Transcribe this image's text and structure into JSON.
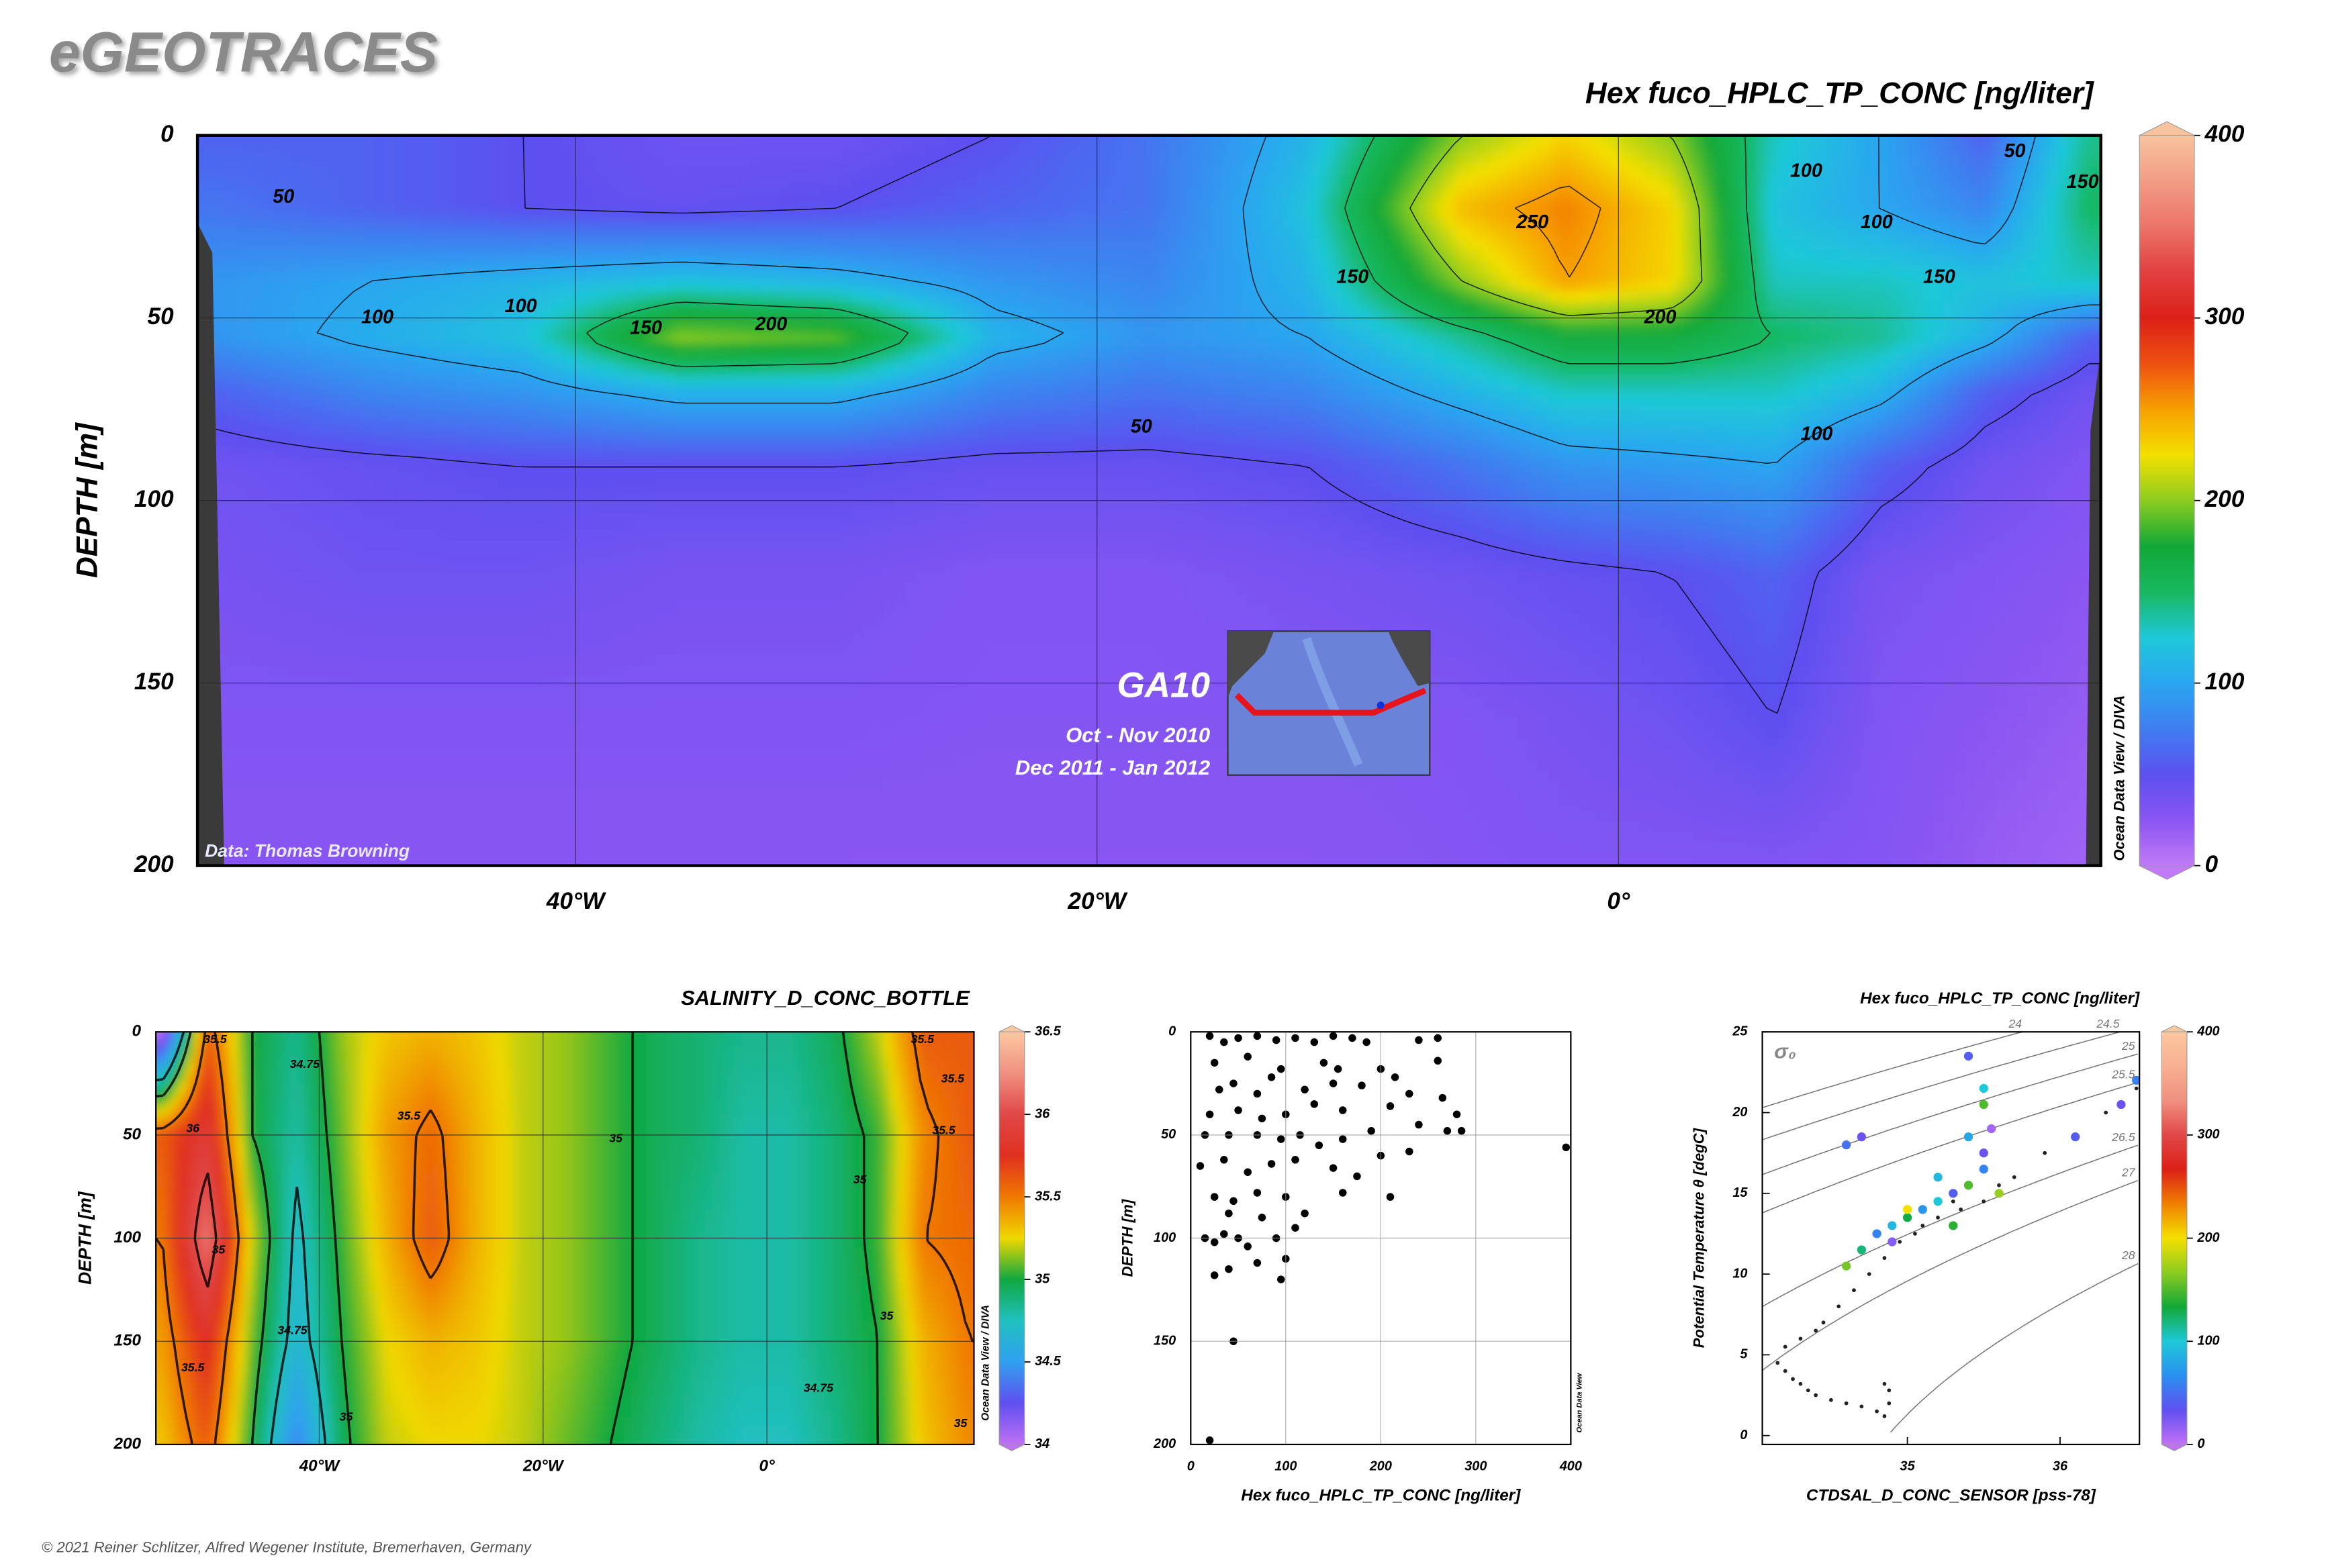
{
  "logo": "eGEOTRACES",
  "footer": "© 2021 Reiner Schlitzer, Alfred Wegener Institute, Bremerhaven, Germany",
  "chart_data": [
    {
      "type": "section",
      "title": "Hex fuco_HPLC_TP_CONC [ng/liter]",
      "ylabel": "DEPTH [m]",
      "xlim": [
        -54.5,
        18.5
      ],
      "ylim": [
        0,
        200
      ],
      "y_inverted": true,
      "grid": true,
      "xticks": [
        {
          "value": -40,
          "label": "40°W"
        },
        {
          "value": -20,
          "label": "20°W"
        },
        {
          "value": 0,
          "label": "0°"
        }
      ],
      "yticks": [
        0,
        50,
        100,
        150,
        200
      ],
      "colorbar": {
        "lim": [
          0,
          400
        ],
        "ticks": [
          0,
          100,
          200,
          300,
          400
        ],
        "colors": [
          "#c07af7",
          "#8a55f2",
          "#5c50f0",
          "#3f7ef0",
          "#2aa6f0",
          "#1ec8d8",
          "#18b860",
          "#12a838",
          "#8ccc20",
          "#f4e000",
          "#f6a000",
          "#ee5010",
          "#dc2018",
          "#e24040",
          "#ec7468",
          "#f29c84",
          "#f8c4a0"
        ]
      },
      "field": {
        "x": [
          -54,
          -48,
          -42,
          -36,
          -30,
          -24,
          -18,
          -12,
          -6,
          -2,
          2,
          6,
          10,
          14,
          18
        ],
        "y": [
          0,
          20,
          40,
          55,
          70,
          90,
          120,
          160,
          200
        ],
        "values": [
          [
            60,
            60,
            50,
            40,
            40,
            50,
            70,
            110,
            200,
            230,
            200,
            130,
            100,
            60,
            140
          ],
          [
            70,
            60,
            50,
            45,
            50,
            60,
            70,
            120,
            240,
            260,
            230,
            120,
            100,
            80,
            150
          ],
          [
            90,
            100,
            110,
            120,
            110,
            90,
            80,
            110,
            200,
            250,
            230,
            130,
            130,
            120,
            130
          ],
          [
            90,
            105,
            120,
            200,
            190,
            110,
            90,
            100,
            140,
            170,
            170,
            150,
            140,
            110,
            60
          ],
          [
            60,
            80,
            90,
            110,
            110,
            80,
            70,
            80,
            110,
            130,
            130,
            130,
            110,
            60,
            40
          ],
          [
            40,
            45,
            50,
            50,
            50,
            45,
            45,
            50,
            70,
            90,
            95,
            100,
            60,
            40,
            30
          ],
          [
            35,
            40,
            40,
            35,
            35,
            30,
            30,
            35,
            40,
            45,
            50,
            60,
            35,
            30,
            25
          ],
          [
            30,
            30,
            30,
            30,
            30,
            28,
            28,
            28,
            30,
            35,
            40,
            50,
            30,
            25,
            20
          ],
          [
            25,
            25,
            25,
            25,
            25,
            25,
            25,
            25,
            28,
            30,
            30,
            30,
            28,
            20,
            15
          ]
        ]
      },
      "contour_levels": [
        50,
        100,
        150,
        200,
        250
      ],
      "contour_labels": [
        {
          "value": 50,
          "x": -51.2,
          "y": 17
        },
        {
          "value": 100,
          "x": -47.6,
          "y": 50
        },
        {
          "value": 100,
          "x": -42.1,
          "y": 47
        },
        {
          "value": 150,
          "x": -37.3,
          "y": 53
        },
        {
          "value": 200,
          "x": -32.5,
          "y": 52
        },
        {
          "value": 50,
          "x": -18.3,
          "y": 80
        },
        {
          "value": 150,
          "x": -10.2,
          "y": 39
        },
        {
          "value": 250,
          "x": -3.3,
          "y": 24
        },
        {
          "value": 200,
          "x": 1.6,
          "y": 50
        },
        {
          "value": 100,
          "x": 7.2,
          "y": 10
        },
        {
          "value": 50,
          "x": 15.2,
          "y": 4.5
        },
        {
          "value": 100,
          "x": 9.9,
          "y": 24
        },
        {
          "value": 150,
          "x": 12.3,
          "y": 39
        },
        {
          "value": 100,
          "x": 7.6,
          "y": 82
        },
        {
          "value": 150,
          "x": 17.8,
          "y": 13
        }
      ],
      "cruise": "GA10",
      "dates": [
        "Oct - Nov 2010",
        "Dec 2011 - Jan 2012"
      ],
      "credit": "Data: Thomas Browning",
      "software": "Ocean Data View / DIVA"
    },
    {
      "type": "section",
      "title": "SALINITY_D_CONC_BOTTLE",
      "ylabel": "DEPTH [m]",
      "xlim": [
        -54.6,
        18.5
      ],
      "ylim": [
        0,
        200
      ],
      "y_inverted": true,
      "grid": true,
      "xticks": [
        {
          "value": -40,
          "label": "40°W"
        },
        {
          "value": -20,
          "label": "20°W"
        },
        {
          "value": 0,
          "label": "0°"
        }
      ],
      "yticks": [
        0,
        50,
        100,
        150,
        200
      ],
      "colorbar": {
        "lim": [
          34,
          36.5
        ],
        "ticks": [
          34,
          34.5,
          35,
          35.5,
          36,
          36.5
        ],
        "colors": [
          "#c070f5",
          "#6050f0",
          "#30a0f0",
          "#20c0c0",
          "#10a840",
          "#f0d800",
          "#f07800",
          "#e03020",
          "#e04848",
          "#f09080",
          "#fcc8a0"
        ]
      },
      "field": {
        "x": [
          -54,
          -50,
          -46,
          -42,
          -38,
          -34,
          -30,
          -26,
          -22,
          -18,
          -14,
          -10,
          -6,
          -2,
          2,
          6,
          10,
          14,
          18
        ],
        "y": [
          0,
          50,
          100,
          150,
          200
        ],
        "values": [
          [
            34.0,
            35.6,
            35.0,
            34.85,
            35.15,
            35.3,
            35.35,
            35.3,
            35.2,
            35.15,
            35.05,
            34.95,
            34.9,
            34.85,
            34.85,
            34.95,
            35.2,
            35.6,
            35.6
          ],
          [
            35.6,
            35.9,
            35.0,
            34.8,
            35.1,
            35.4,
            35.55,
            35.35,
            35.2,
            35.15,
            35.05,
            34.95,
            34.9,
            34.8,
            34.8,
            34.9,
            35.05,
            35.45,
            35.6
          ],
          [
            35.5,
            36.2,
            35.2,
            34.7,
            35.05,
            35.35,
            35.6,
            35.35,
            35.2,
            35.15,
            35.05,
            34.95,
            34.85,
            34.8,
            34.8,
            34.9,
            35.05,
            35.5,
            35.55
          ],
          [
            35.4,
            35.8,
            35.1,
            34.65,
            35.0,
            35.25,
            35.35,
            35.3,
            35.2,
            35.15,
            35.05,
            34.95,
            34.85,
            34.8,
            34.8,
            34.9,
            35.0,
            35.35,
            35.5
          ],
          [
            35.3,
            35.6,
            35.0,
            34.4,
            34.95,
            35.2,
            35.25,
            35.25,
            35.2,
            35.1,
            35.0,
            34.9,
            34.8,
            34.75,
            34.75,
            34.85,
            35.0,
            35.3,
            35.45
          ]
        ]
      },
      "contour_levels": [
        34.75,
        35,
        35.5,
        36
      ],
      "contour_labels": [
        {
          "value": 35.5,
          "x": -49.3,
          "y": 4
        },
        {
          "value": 36,
          "x": -51.3,
          "y": 47
        },
        {
          "value": 35,
          "x": -49,
          "y": 106
        },
        {
          "value": 35.5,
          "x": -51.3,
          "y": 163
        },
        {
          "value": 34.75,
          "x": -41.3,
          "y": 16
        },
        {
          "value": 34.75,
          "x": -42.4,
          "y": 145
        },
        {
          "value": 35.5,
          "x": -32,
          "y": 41
        },
        {
          "value": 35,
          "x": -13.5,
          "y": 52
        },
        {
          "value": 35,
          "x": -37.6,
          "y": 187
        },
        {
          "value": 35,
          "x": 10.7,
          "y": 138
        },
        {
          "value": 34.75,
          "x": 4.6,
          "y": 173
        },
        {
          "value": 35,
          "x": 8.3,
          "y": 72
        },
        {
          "value": 35.5,
          "x": 13.9,
          "y": 4
        },
        {
          "value": 35.5,
          "x": 16.6,
          "y": 23
        },
        {
          "value": 35.5,
          "x": 15.8,
          "y": 48
        },
        {
          "value": 35,
          "x": 17.3,
          "y": 190
        }
      ],
      "software": "Ocean Data View / DIVA"
    },
    {
      "type": "scatter",
      "xlabel": "Hex fuco_HPLC_TP_CONC [ng/liter]",
      "ylabel": "DEPTH [m]",
      "xlim": [
        0,
        400
      ],
      "ylim": [
        0,
        200
      ],
      "y_inverted": true,
      "grid": true,
      "xticks": [
        0,
        100,
        200,
        300,
        400
      ],
      "yticks": [
        0,
        50,
        100,
        150,
        200
      ],
      "color": "#000000",
      "x": [
        20,
        35,
        50,
        70,
        90,
        110,
        130,
        150,
        170,
        185,
        240,
        260,
        25,
        60,
        95,
        140,
        155,
        200,
        215,
        260,
        30,
        45,
        70,
        85,
        120,
        150,
        180,
        230,
        265,
        280,
        20,
        50,
        75,
        100,
        130,
        160,
        210,
        240,
        270,
        15,
        40,
        70,
        95,
        115,
        135,
        160,
        190,
        200,
        230,
        395,
        285,
        10,
        35,
        60,
        85,
        110,
        150,
        175,
        25,
        45,
        70,
        100,
        160,
        210,
        40,
        75,
        120,
        15,
        25,
        35,
        50,
        60,
        90,
        110,
        100,
        40,
        70,
        25,
        95,
        45,
        20
      ],
      "values": [
        2,
        5,
        3,
        2,
        4,
        3,
        5,
        2,
        3,
        5,
        4,
        3,
        15,
        12,
        18,
        15,
        18,
        18,
        22,
        14,
        28,
        25,
        30,
        22,
        28,
        25,
        26,
        30,
        32,
        40,
        40,
        38,
        42,
        40,
        35,
        38,
        36,
        45,
        48,
        50,
        50,
        50,
        52,
        50,
        55,
        52,
        48,
        60,
        58,
        56,
        48,
        65,
        62,
        68,
        64,
        62,
        66,
        70,
        80,
        82,
        78,
        80,
        78,
        80,
        88,
        90,
        88,
        100,
        102,
        98,
        100,
        104,
        100,
        95,
        110,
        115,
        112,
        118,
        120,
        150,
        198
      ],
      "software": "Ocean Data View"
    },
    {
      "type": "ts",
      "title": "Hex fuco_HPLC_TP_CONC [ng/liter]",
      "xlabel": "CTDSAL_D_CONC_SENSOR [pss-78]",
      "ylabel": "Potential Temperature θ [degC]",
      "xlim": [
        34.05,
        36.52
      ],
      "ylim": [
        -0.55,
        25
      ],
      "xticks": [
        35,
        36
      ],
      "yticks": [
        0,
        5,
        10,
        15,
        20,
        25
      ],
      "sigma_label": "σ₀",
      "sigma_levels": [
        24,
        24.5,
        25,
        25.5,
        26.5,
        27,
        28
      ],
      "colorbar": {
        "lim": [
          0,
          400
        ],
        "ticks": [
          0,
          100,
          200,
          300,
          400
        ],
        "colors": [
          "#c070f5",
          "#6050f0",
          "#2a90f0",
          "#1ec8d8",
          "#12a838",
          "#8ccc20",
          "#f4e000",
          "#f08000",
          "#dc2018",
          "#e04848",
          "#f09080",
          "#f8b090",
          "#fcc8a0"
        ]
      },
      "points": {
        "color": "#222222",
        "x": [
          34.15,
          34.2,
          34.25,
          34.3,
          34.35,
          34.4,
          34.5,
          34.6,
          34.7,
          34.8,
          34.85,
          34.88,
          34.88,
          34.85,
          34.2,
          34.3,
          34.4,
          34.45,
          34.55,
          34.65,
          34.75,
          34.85,
          34.95,
          35.05,
          35.2,
          35.35,
          35.5,
          35.7,
          35.9,
          36.1,
          36.3,
          36.5,
          35.1,
          35.3,
          35.6
        ],
        "values": [
          4.5,
          4.0,
          3.5,
          3.2,
          2.8,
          2.5,
          2.2,
          2.0,
          1.8,
          1.5,
          1.2,
          2.0,
          2.8,
          3.2,
          5.5,
          6.0,
          6.5,
          7.0,
          8.0,
          9.0,
          10.0,
          11.0,
          12.0,
          12.5,
          13.5,
          14.0,
          14.5,
          16.0,
          17.5,
          18.5,
          20.0,
          21.5,
          13.0,
          14.5,
          15.5
        ]
      },
      "colored_points": {
        "x": [
          34.6,
          34.7,
          34.8,
          34.9,
          35.0,
          35.1,
          35.2,
          35.3,
          35.4,
          35.5,
          35.5,
          35.4,
          35.5,
          35.5,
          35.4,
          35.0,
          34.9,
          35.6,
          35.2,
          34.7,
          34.6,
          36.1,
          36.5,
          36.4,
          35.3,
          35.55
        ],
        "values": [
          10.5,
          11.5,
          12.5,
          13.0,
          13.5,
          14.0,
          14.5,
          15.0,
          15.5,
          16.5,
          17.5,
          18.5,
          20.5,
          21.5,
          23.5,
          14.0,
          12.0,
          15.0,
          16.0,
          18.5,
          18.0,
          18.5,
          22.0,
          20.5,
          13.0,
          19.0
        ],
        "z": [
          160,
          120,
          60,
          90,
          130,
          70,
          100,
          40,
          150,
          60,
          30,
          80,
          150,
          100,
          40,
          200,
          20,
          170,
          90,
          30,
          50,
          40,
          60,
          30,
          140,
          10
        ]
      }
    }
  ]
}
